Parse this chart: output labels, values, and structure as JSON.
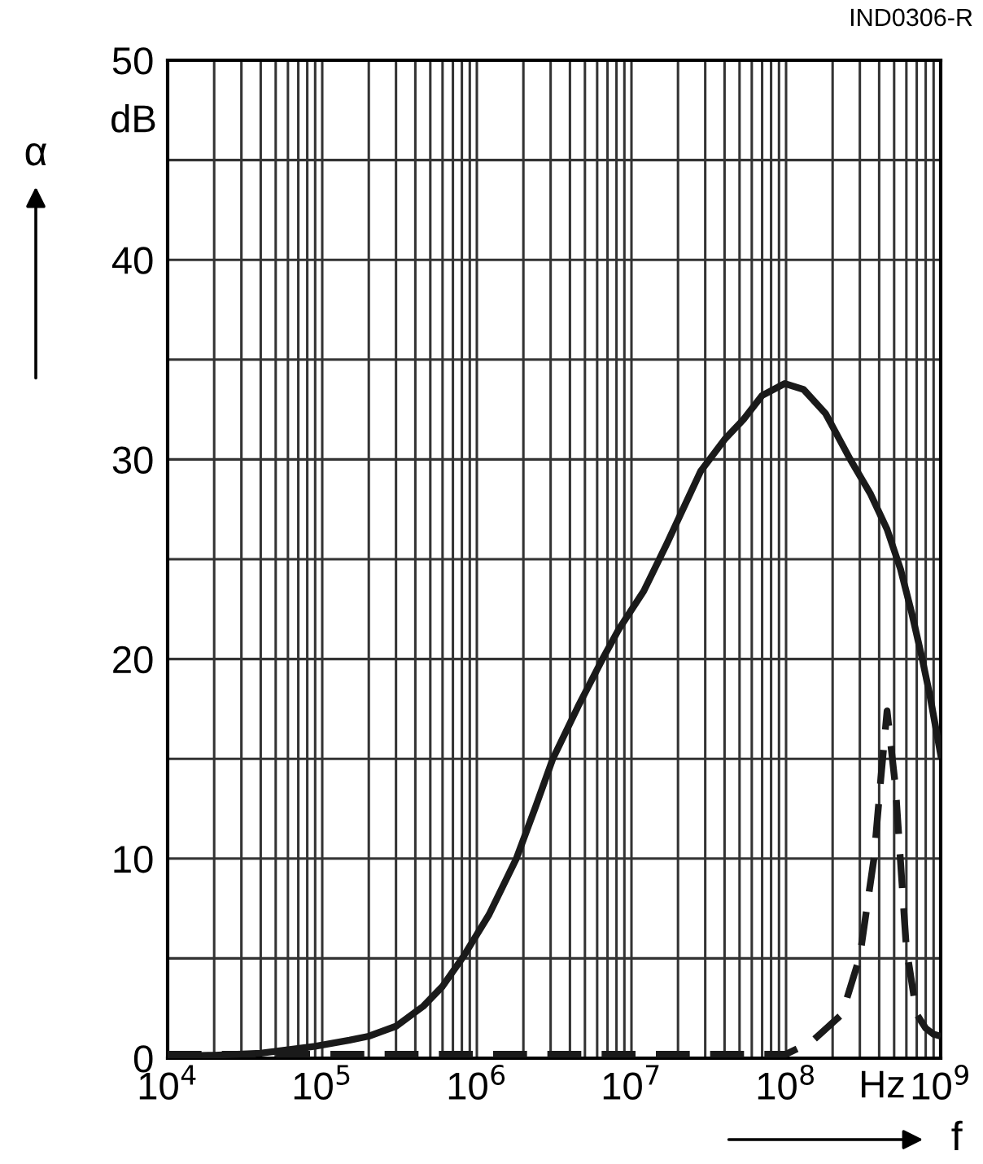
{
  "chart_data": {
    "type": "line",
    "xlabel": "f",
    "ylabel": "α",
    "log": "x",
    "grid": true,
    "marker": "none",
    "annotations": [
      "IND0306-R",
      "dB",
      "Hz"
    ],
    "xlim": [
      10000,
      1000000000
    ],
    "ylim": [
      0,
      50
    ],
    "xticks": [
      {
        "value": 10000,
        "label": "10$^{4}$"
      },
      {
        "value": 20000,
        "label": null
      },
      {
        "value": 30000,
        "label": null
      },
      {
        "value": 40000,
        "label": null
      },
      {
        "value": 50000,
        "label": null
      },
      {
        "value": 60000,
        "label": null
      },
      {
        "value": 70000,
        "label": null
      },
      {
        "value": 80000,
        "label": null
      },
      {
        "value": 90000,
        "label": null
      },
      {
        "value": 100000,
        "label": "10$^{5}$"
      },
      {
        "value": 200000,
        "label": null
      },
      {
        "value": 300000,
        "label": null
      },
      {
        "value": 400000,
        "label": null
      },
      {
        "value": 500000,
        "label": null
      },
      {
        "value": 600000,
        "label": null
      },
      {
        "value": 700000,
        "label": null
      },
      {
        "value": 800000,
        "label": null
      },
      {
        "value": 900000,
        "label": null
      },
      {
        "value": 1000000,
        "label": "10$^{6}$"
      },
      {
        "value": 2000000,
        "label": null
      },
      {
        "value": 3000000,
        "label": null
      },
      {
        "value": 4000000,
        "label": null
      },
      {
        "value": 5000000,
        "label": null
      },
      {
        "value": 6000000,
        "label": null
      },
      {
        "value": 7000000,
        "label": null
      },
      {
        "value": 8000000,
        "label": null
      },
      {
        "value": 9000000,
        "label": null
      },
      {
        "value": 10000000,
        "label": "10$^{7}$"
      },
      {
        "value": 20000000,
        "label": null
      },
      {
        "value": 30000000,
        "label": null
      },
      {
        "value": 40000000,
        "label": null
      },
      {
        "value": 50000000,
        "label": null
      },
      {
        "value": 60000000,
        "label": null
      },
      {
        "value": 70000000,
        "label": null
      },
      {
        "value": 80000000,
        "label": null
      },
      {
        "value": 90000000,
        "label": null
      },
      {
        "value": 100000000,
        "label": "10$^{8}$"
      },
      {
        "value": 200000000,
        "label": null
      },
      {
        "value": 300000000,
        "label": null
      },
      {
        "value": 400000000,
        "label": null
      },
      {
        "value": 500000000,
        "label": null
      },
      {
        "value": 600000000,
        "label": null
      },
      {
        "value": 700000000,
        "label": null
      },
      {
        "value": 800000000,
        "label": null
      },
      {
        "value": 900000000,
        "label": null
      },
      {
        "value": 1000000000,
        "label": "10$^{9}$"
      }
    ],
    "yticks": [
      0,
      {
        "value": 5,
        "label": null
      },
      10,
      {
        "value": 15,
        "label": null
      },
      20,
      {
        "value": 25,
        "label": null
      },
      30,
      {
        "value": 35,
        "label": null
      },
      40,
      {
        "value": 45,
        "label": null
      },
      50
    ],
    "series": [
      {
        "color": "#1a1a1a",
        "line_style": "solid",
        "x": [
          10000,
          20000,
          40000,
          90000,
          150000,
          200000,
          300000,
          450000,
          600000,
          820000,
          1200000,
          1800000,
          2400000,
          3100000,
          4500000,
          6500000,
          8300000,
          12000000,
          17000000,
          28000000,
          40000000,
          53000000,
          70000000,
          98000000,
          130000000,
          180000000,
          260000000,
          350000000,
          450000000,
          550000000,
          650000000,
          760000000,
          850000000,
          1000000000
        ],
        "values": [
          0.1,
          0.15,
          0.25,
          0.6,
          0.9,
          1.1,
          1.6,
          2.6,
          3.6,
          5.1,
          7.2,
          10,
          12.6,
          15,
          17.6,
          20,
          21.5,
          23.4,
          25.8,
          29.4,
          31,
          32,
          33.2,
          33.8,
          33.5,
          32.3,
          30,
          28.3,
          26.5,
          24.5,
          22.3,
          20,
          18.2,
          15.2
        ]
      },
      {
        "color": "#1a1a1a",
        "line_style": "dashed",
        "x": [
          10000,
          100000000,
          145000000,
          230000000,
          300000000,
          370000000,
          410000000,
          450000000,
          510000000,
          600000000,
          700000000,
          800000000,
          900000000,
          1000000000
        ],
        "values": [
          0.2,
          0.2,
          0.8,
          2.2,
          5.1,
          10,
          14,
          17.4,
          13.6,
          5.5,
          2.2,
          1.5,
          1.2,
          1.1
        ]
      }
    ]
  }
}
